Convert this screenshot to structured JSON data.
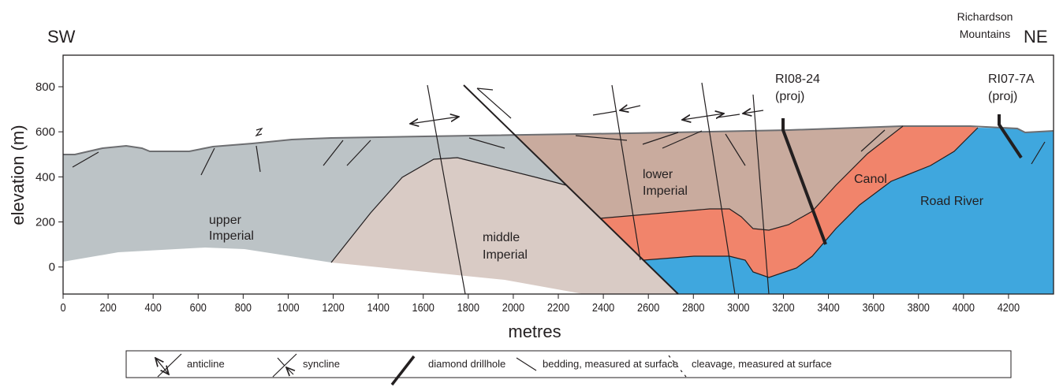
{
  "header": {
    "left": "SW",
    "right": "NE",
    "range_name": [
      "Richardson",
      "Mountains"
    ]
  },
  "axes": {
    "xlabel": "metres",
    "ylabel": "elevation (m)",
    "xlim": [
      0,
      4400
    ],
    "ylim": [
      -120,
      940
    ],
    "xticks": [
      0,
      200,
      400,
      600,
      800,
      1000,
      1200,
      1400,
      1600,
      1800,
      2000,
      2200,
      2400,
      2600,
      2800,
      3000,
      3200,
      3400,
      3600,
      3800,
      4000,
      4200
    ],
    "yticks": [
      0,
      200,
      400,
      600,
      800
    ]
  },
  "units": [
    {
      "label": [
        "upper",
        "Imperial"
      ]
    },
    {
      "label": [
        "middle",
        "Imperial"
      ]
    },
    {
      "label": [
        "lower",
        "Imperial"
      ]
    },
    {
      "label": [
        "Canol"
      ]
    },
    {
      "label": [
        "Road River"
      ]
    }
  ],
  "drillholes": [
    {
      "name": "RI08-24",
      "note": "(proj)"
    },
    {
      "name": "RI07-7A",
      "note": "(proj)"
    }
  ],
  "legend": [
    "anticline",
    "syncline",
    "diamond drillhole",
    "bedding, measured at surface",
    "cleavage, measured at surface"
  ]
}
